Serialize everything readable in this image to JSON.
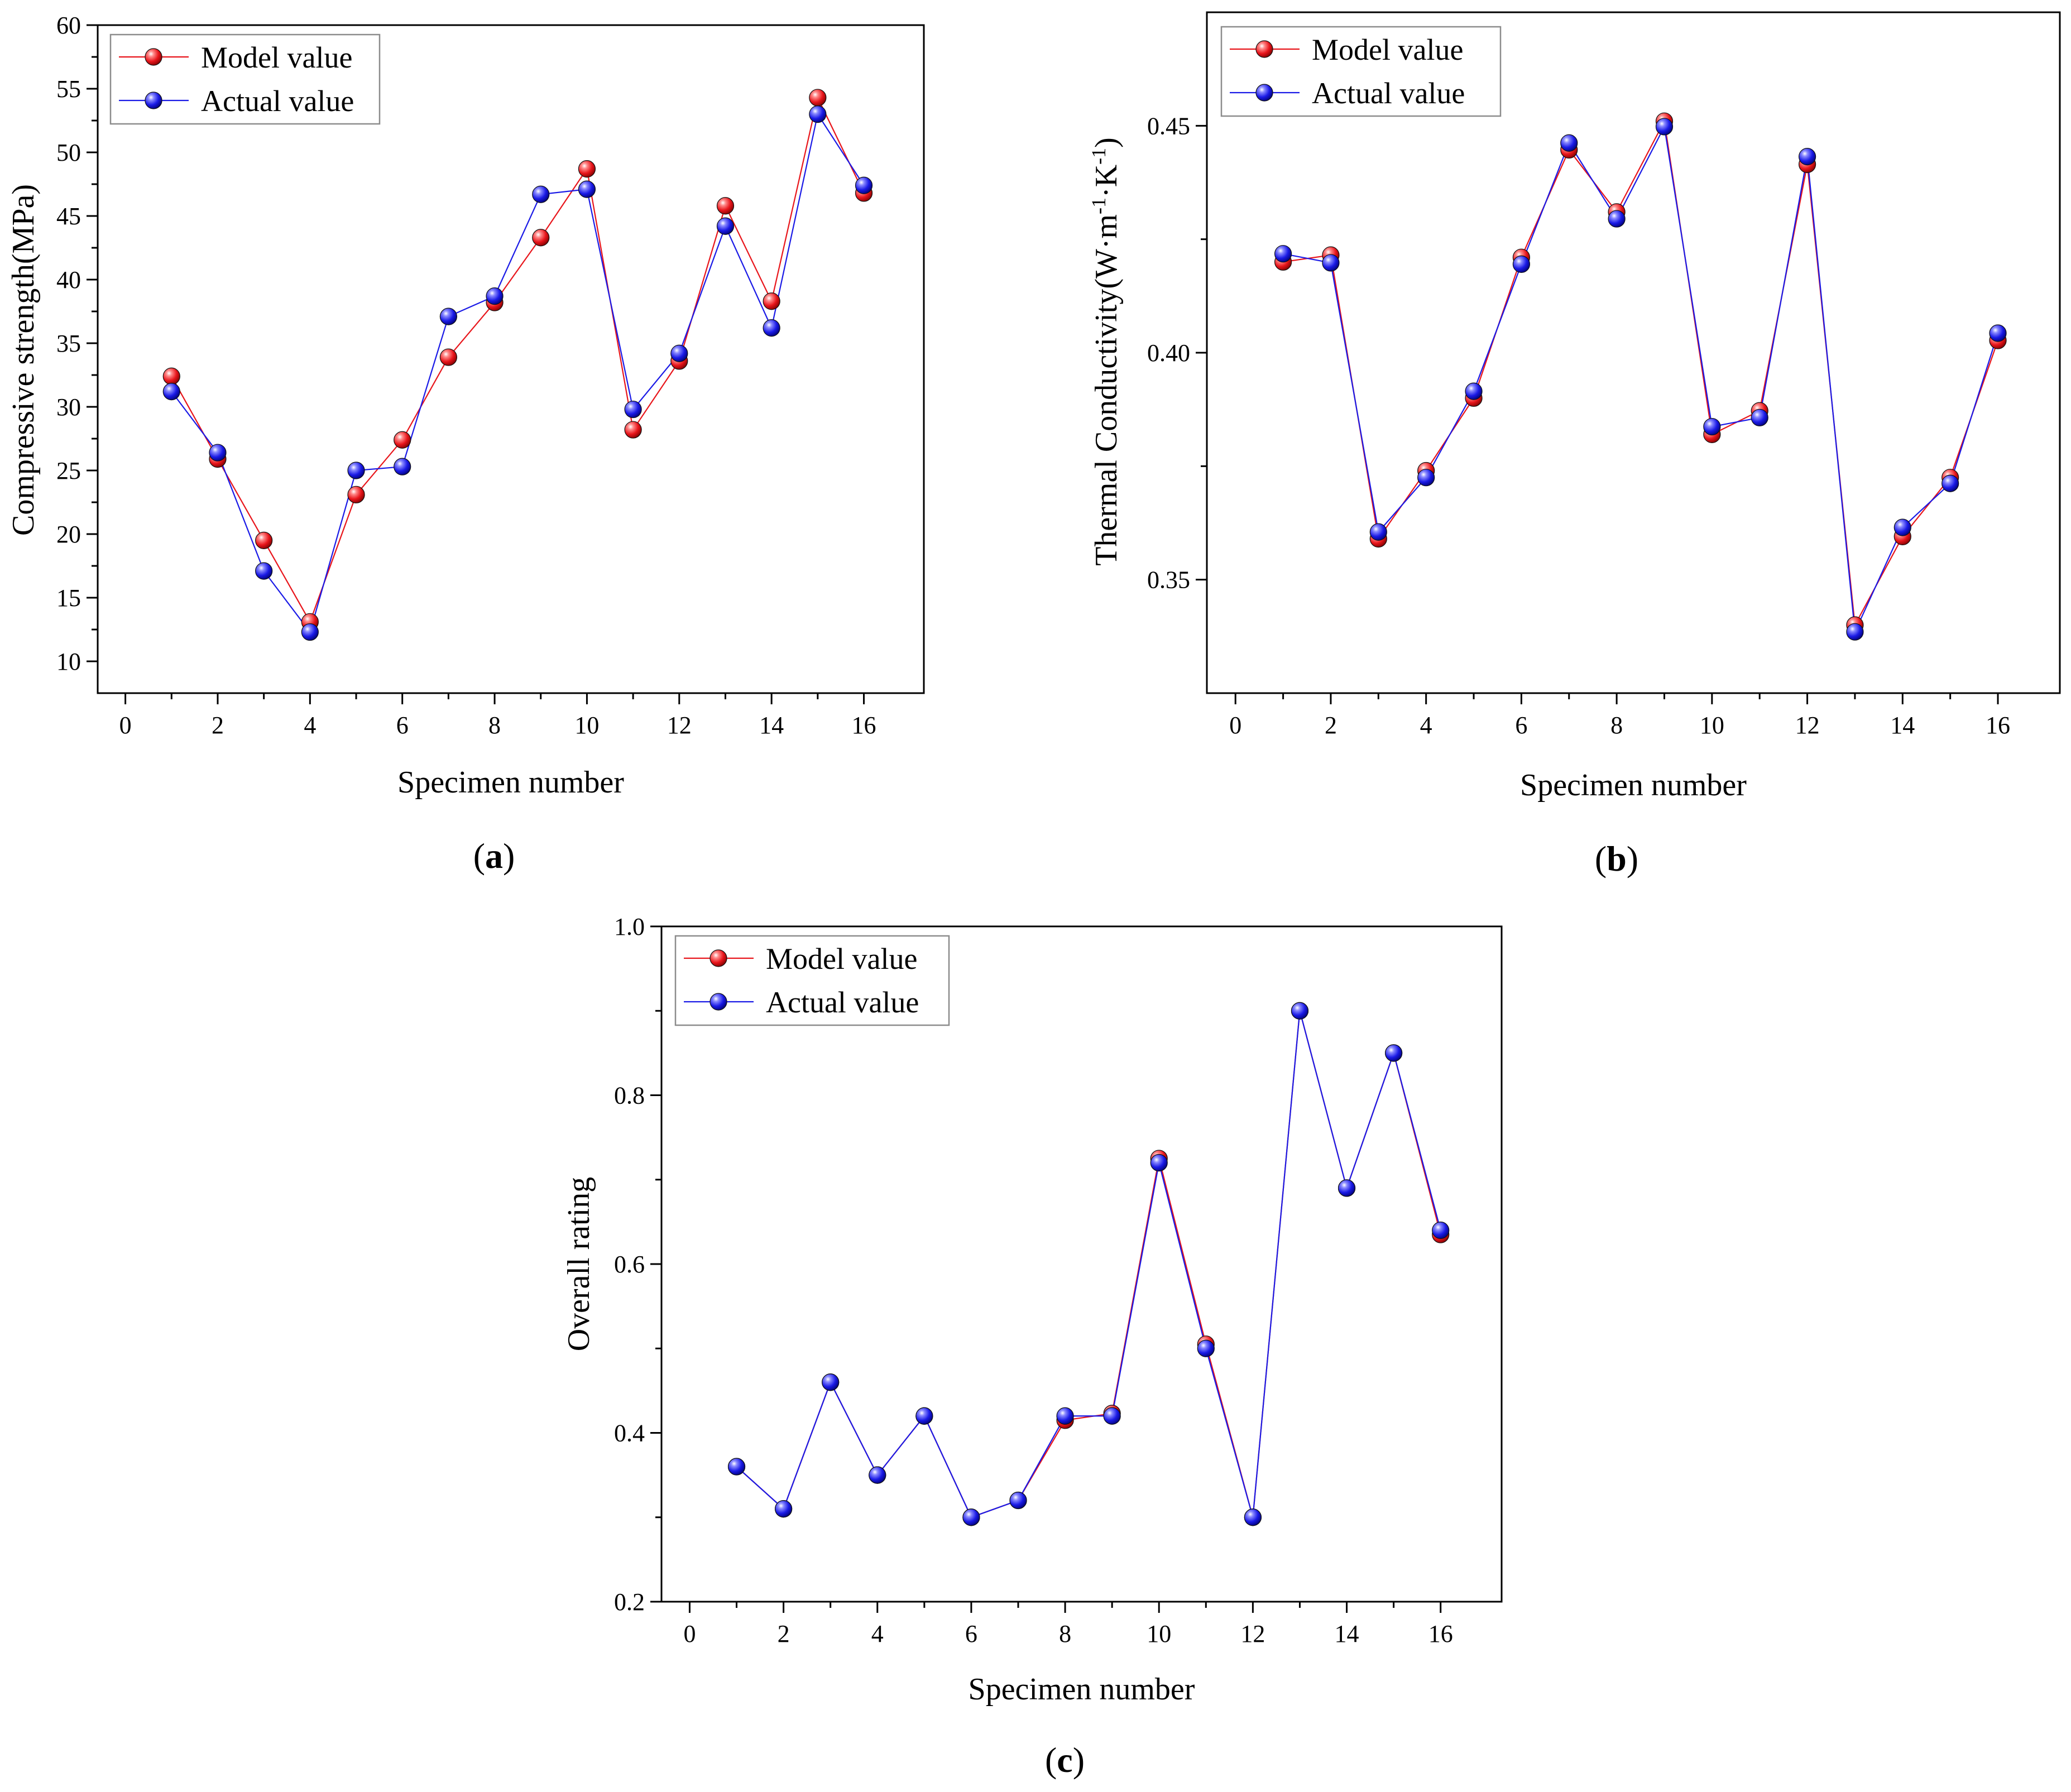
{
  "colors": {
    "model": "#e8151b",
    "actual": "#1a1ae6",
    "axis": "#000000",
    "legend_border": "#8c8c8c"
  },
  "charts": [
    {
      "panel_label": "a",
      "type": "line",
      "xlabel": "Specimen number",
      "ylabel": "Compressive strength(MPa)",
      "xlim": [
        -0.6,
        17.3
      ],
      "ylim": [
        7.5,
        60
      ],
      "xticks": [
        "0",
        "2",
        "4",
        "6",
        "8",
        "10",
        "12",
        "14",
        "16"
      ],
      "yticks": [
        "10",
        "15",
        "20",
        "25",
        "30",
        "35",
        "40",
        "45",
        "50",
        "55",
        "60"
      ],
      "legend": {
        "placement": "top-left"
      },
      "x": [
        1,
        2,
        3,
        4,
        5,
        6,
        7,
        8,
        9,
        10,
        11,
        12,
        13,
        14,
        15,
        16
      ],
      "series": [
        {
          "name": "Model value",
          "marker": "model",
          "values": [
            32.4,
            25.9,
            19.5,
            13.1,
            23.1,
            27.4,
            33.9,
            38.2,
            43.3,
            48.7,
            28.2,
            33.6,
            45.8,
            38.3,
            54.3,
            46.8
          ]
        },
        {
          "name": "Actual value",
          "marker": "actual",
          "values": [
            31.2,
            26.4,
            17.1,
            12.3,
            25.0,
            25.3,
            37.1,
            38.7,
            46.7,
            47.1,
            29.8,
            34.2,
            44.2,
            36.2,
            53.0,
            47.4
          ]
        }
      ]
    },
    {
      "panel_label": "b",
      "type": "line",
      "xlabel": "Specimen number",
      "ylabel_parts": [
        "Thermal Conductivity(W·m",
        "-1",
        "·K",
        "-1",
        ")"
      ],
      "xlim": [
        -0.6,
        17.3
      ],
      "ylim": [
        0.325,
        0.475
      ],
      "xticks": [
        "0",
        "2",
        "4",
        "6",
        "8",
        "10",
        "12",
        "14",
        "16"
      ],
      "yticks": [
        "0.35",
        "0.40",
        "0.45"
      ],
      "legend": {
        "placement": "top-left"
      },
      "x": [
        1,
        2,
        3,
        4,
        5,
        6,
        7,
        8,
        9,
        10,
        11,
        12,
        13,
        14,
        15,
        16
      ],
      "series": [
        {
          "name": "Model value",
          "marker": "model",
          "values": [
            0.42,
            0.4215,
            0.359,
            0.374,
            0.39,
            0.421,
            0.4447,
            0.431,
            0.451,
            0.382,
            0.3872,
            0.4415,
            0.34,
            0.3595,
            0.3725,
            0.4027
          ]
        },
        {
          "name": "Actual value",
          "marker": "actual",
          "values": [
            0.4218,
            0.4198,
            0.3605,
            0.3725,
            0.3915,
            0.4195,
            0.4462,
            0.4295,
            0.4498,
            0.3837,
            0.3857,
            0.4432,
            0.3385,
            0.3615,
            0.3712,
            0.4043
          ]
        }
      ]
    },
    {
      "panel_label": "c",
      "type": "line",
      "xlabel": "Specimen number",
      "ylabel": "Overall rating",
      "xlim": [
        -0.6,
        17.3
      ],
      "ylim": [
        0.2,
        1.0
      ],
      "xticks": [
        "0",
        "2",
        "4",
        "6",
        "8",
        "10",
        "12",
        "14",
        "16"
      ],
      "yticks": [
        "0.2",
        "0.4",
        "0.6",
        "0.8",
        "1.0"
      ],
      "legend": {
        "placement": "top-left"
      },
      "x": [
        1,
        2,
        3,
        4,
        5,
        6,
        7,
        8,
        9,
        10,
        11,
        12,
        13,
        14,
        15,
        16
      ],
      "series": [
        {
          "name": "Model value",
          "marker": "model",
          "values": [
            0.36,
            0.31,
            0.46,
            0.35,
            0.42,
            0.3,
            0.32,
            0.415,
            0.423,
            0.725,
            0.505,
            0.3,
            0.9,
            0.69,
            0.85,
            0.635
          ]
        },
        {
          "name": "Actual value",
          "marker": "actual",
          "values": [
            0.36,
            0.31,
            0.46,
            0.35,
            0.42,
            0.3,
            0.32,
            0.42,
            0.42,
            0.72,
            0.5,
            0.3,
            0.9,
            0.69,
            0.85,
            0.64
          ]
        }
      ]
    }
  ]
}
